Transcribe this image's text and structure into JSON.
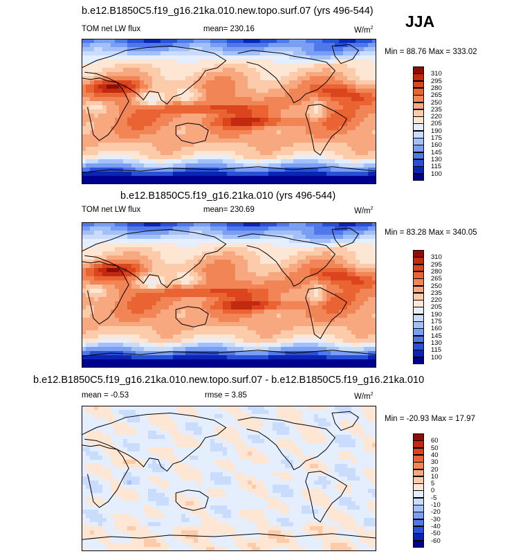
{
  "season": "JJA",
  "colors": {
    "full": [
      "#00008f",
      "#0a24b4",
      "#2a50d6",
      "#4f78ea",
      "#7a9ef3",
      "#a3c0f8",
      "#cadcfb",
      "#e4eefc",
      "#fde6d4",
      "#fbcbaa",
      "#f7a87f",
      "#f28556",
      "#ea6333",
      "#dc441d",
      "#c22a0f",
      "#8f0d05"
    ],
    "diff": [
      "#00008f",
      "#0a24b4",
      "#2a50d6",
      "#4f78ea",
      "#7a9ef3",
      "#a3c0f8",
      "#cadcfb",
      "#e4eefc",
      "#fde6d4",
      "#fbcbaa",
      "#f7a87f",
      "#f28556",
      "#ea6333",
      "#dc441d",
      "#c22a0f",
      "#8f0d05"
    ]
  },
  "chart_data": [
    {
      "type": "heatmap",
      "title": "b.e12.B1850C5.f19_g16.21ka.010.new.topo.surf.07 (yrs 496-544)",
      "variable": "TOM net LW flux",
      "mean_label": "mean= 230.16",
      "units": "W/m",
      "units_exp": "2",
      "minmax": "Min =  88.76 Max = 333.02",
      "min": 88.76,
      "max": 333.02,
      "mean": 230.16,
      "levels": [
        100,
        115,
        130,
        145,
        160,
        175,
        190,
        205,
        220,
        235,
        250,
        265,
        280,
        295,
        310
      ],
      "level_labels": [
        "310",
        "295",
        "280",
        "265",
        "250",
        "235",
        "220",
        "205",
        "190",
        "175",
        "160",
        "145",
        "130",
        "115",
        "100"
      ],
      "palette": "full"
    },
    {
      "type": "heatmap",
      "title": "b.e12.B1850C5.f19_g16.21ka.010 (yrs 496-544)",
      "variable": "TOM net LW flux",
      "mean_label": "mean= 230.69",
      "units": "W/m",
      "units_exp": "2",
      "minmax": "Min =  83.28 Max = 340.05",
      "min": 83.28,
      "max": 340.05,
      "mean": 230.69,
      "levels": [
        100,
        115,
        130,
        145,
        160,
        175,
        190,
        205,
        220,
        235,
        250,
        265,
        280,
        295,
        310
      ],
      "level_labels": [
        "310",
        "295",
        "280",
        "265",
        "250",
        "235",
        "220",
        "205",
        "190",
        "175",
        "160",
        "145",
        "130",
        "115",
        "100"
      ],
      "palette": "full"
    },
    {
      "type": "heatmap",
      "title": "b.e12.B1850C5.f19_g16.21ka.010.new.topo.surf.07 - b.e12.B1850C5.f19_g16.21ka.010",
      "mean_label": "mean =  -0.53",
      "rmse_label": "rmse =   3.85",
      "units": "W/m",
      "units_exp": "2",
      "minmax": "Min = -20.93 Max =  17.97",
      "min": -20.93,
      "max": 17.97,
      "mean": -0.53,
      "rmse": 3.85,
      "levels": [
        -60,
        -50,
        -40,
        -30,
        -20,
        -10,
        -5,
        0,
        5,
        10,
        20,
        30,
        40,
        50,
        60
      ],
      "level_labels": [
        "60",
        "50",
        "40",
        "30",
        "20",
        "10",
        "5",
        "0",
        "-5",
        "-10",
        "-20",
        "-30",
        "-40",
        "-50",
        "-60"
      ],
      "palette": "diff"
    }
  ]
}
